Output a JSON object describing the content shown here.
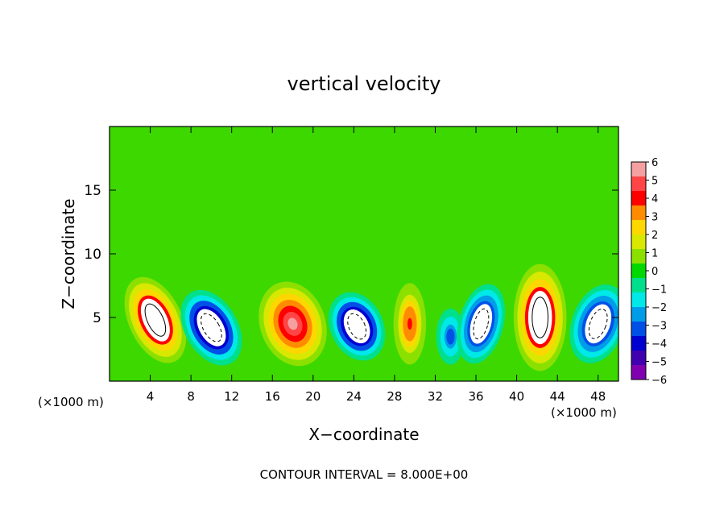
{
  "chart_data": {
    "type": "heatmap",
    "title": "vertical velocity",
    "xlabel": "X−coordinate",
    "ylabel": "Z−coordinate",
    "x_unit_left": "(×1000 m)",
    "x_unit_right": "(×1000 m)",
    "footer": "CONTOUR INTERVAL = 8.000E+00",
    "xlim": [
      0,
      50
    ],
    "ylim": [
      0,
      20
    ],
    "x_ticks": [
      4,
      8,
      12,
      16,
      20,
      24,
      28,
      32,
      36,
      40,
      44,
      48
    ],
    "y_ticks": [
      5,
      10,
      15
    ],
    "colorbar": {
      "ticks": [
        "6",
        "5",
        "4",
        "3",
        "2",
        "1",
        "0",
        "−1",
        "−2",
        "−3",
        "−4",
        "−5",
        "−6"
      ],
      "range": [
        -6,
        6
      ],
      "colors": [
        "#f4a0a0",
        "#ff4545",
        "#ff0000",
        "#ff8c00",
        "#ffd700",
        "#d8e800",
        "#8ce000",
        "#00d800",
        "#00e08c",
        "#00e8e8",
        "#009ce8",
        "#0050e8",
        "#0000d0",
        "#4000b0",
        "#8000b0"
      ]
    },
    "cells": [
      {
        "x": 4.5,
        "z": 4.8,
        "rx": 2.6,
        "rz": 3.6,
        "rot": -25,
        "w": 7
      },
      {
        "x": 10.0,
        "z": 4.2,
        "rx": 2.6,
        "rz": 3.2,
        "rot": -30,
        "w": -7
      },
      {
        "x": 18.0,
        "z": 4.5,
        "rx": 3.2,
        "rz": 3.4,
        "rot": -20,
        "w": 6
      },
      {
        "x": 24.3,
        "z": 4.3,
        "rx": 2.6,
        "rz": 2.8,
        "rot": -25,
        "w": -7
      },
      {
        "x": 29.5,
        "z": 4.5,
        "rx": 1.6,
        "rz": 3.2,
        "rot": 0,
        "w": 4.5
      },
      {
        "x": 33.5,
        "z": 3.5,
        "rx": 1.4,
        "rz": 2.2,
        "rot": 0,
        "w": -3.5
      },
      {
        "x": 36.5,
        "z": 4.5,
        "rx": 2.2,
        "rz": 3.2,
        "rot": 15,
        "w": -6.5
      },
      {
        "x": 42.3,
        "z": 5.0,
        "rx": 2.6,
        "rz": 4.2,
        "rot": 0,
        "w": 7
      },
      {
        "x": 48.0,
        "z": 4.5,
        "rx": 2.6,
        "rz": 3.2,
        "rot": 20,
        "w": -6.5
      }
    ]
  }
}
